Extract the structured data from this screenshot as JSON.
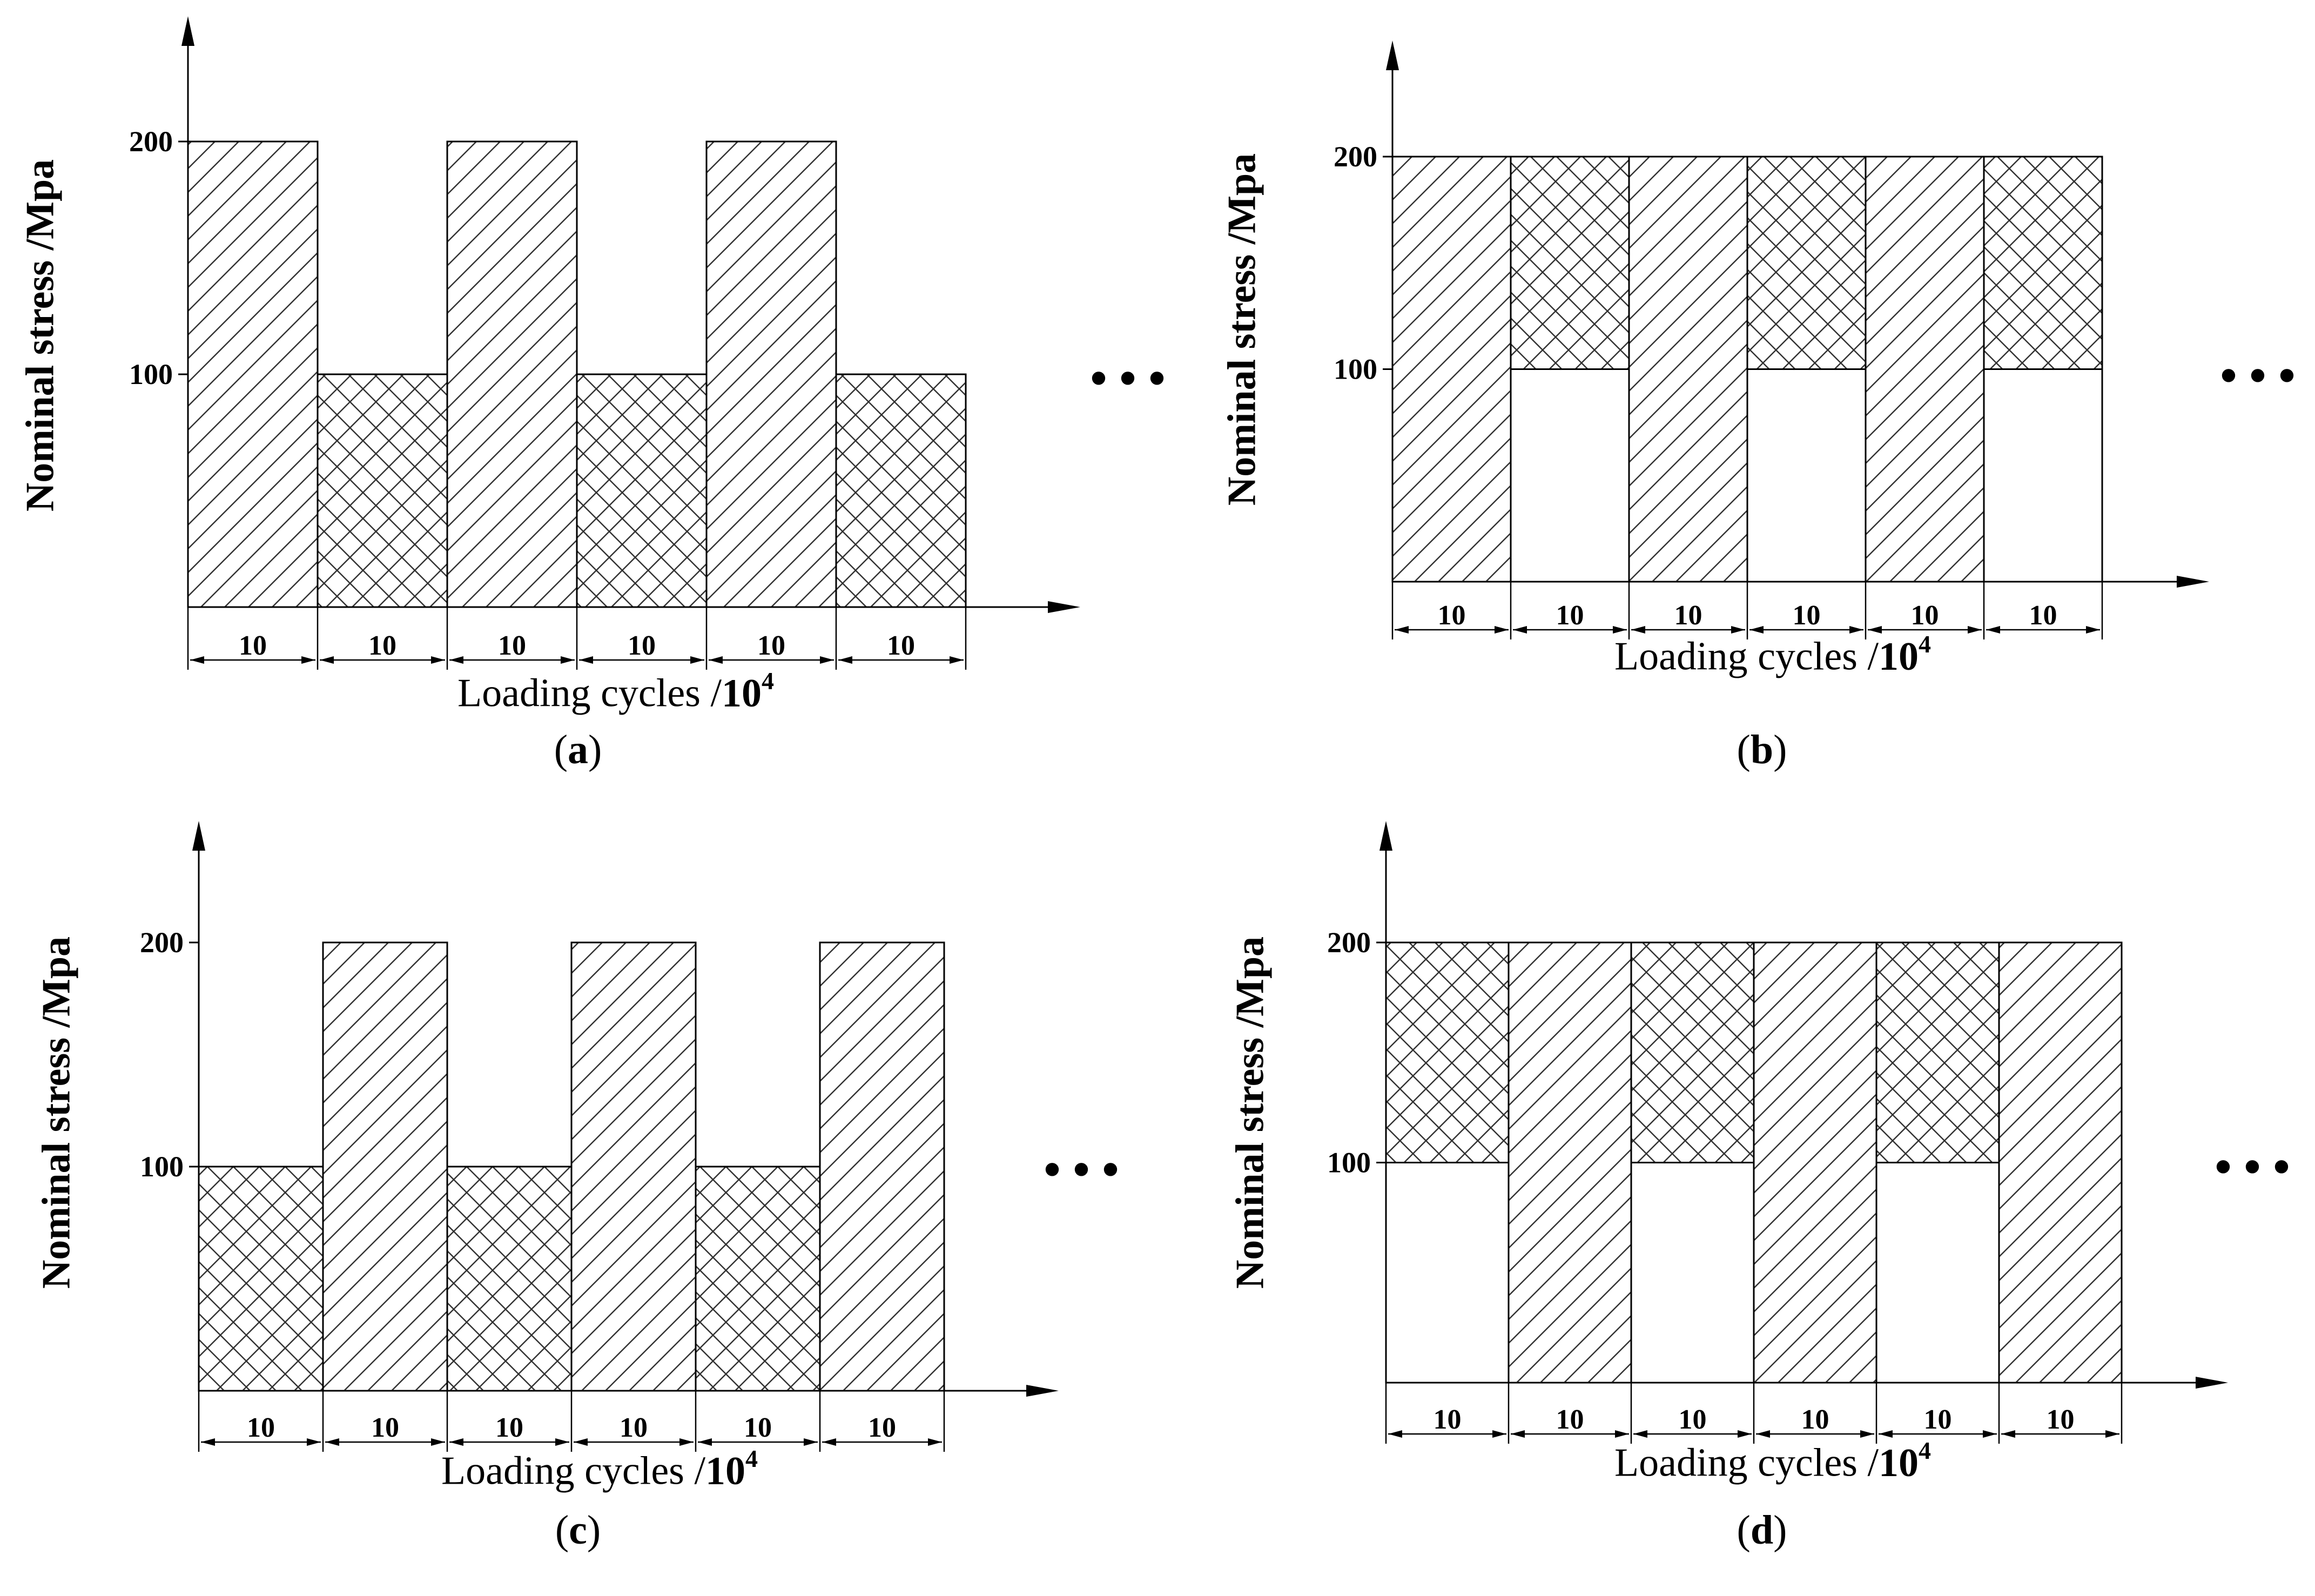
{
  "chart_data": [
    {
      "type": "bar",
      "panel": "a",
      "caption": {
        "open": "(",
        "letter": "a",
        "close": ")"
      },
      "ylabel": "Nominal stress /Mpa",
      "xlabel": {
        "text": "Loading cycles /",
        "unit": "10",
        "exp": "4"
      },
      "yticks": [
        100,
        200
      ],
      "ylim": [
        0,
        270
      ],
      "block_widths": [
        10,
        10,
        10,
        10,
        10,
        10
      ],
      "series": [
        {
          "name": "",
          "values": [
            200,
            100,
            200,
            100,
            200,
            100
          ]
        }
      ],
      "blocks": [
        {
          "value": 200,
          "pattern": "diagonal"
        },
        {
          "value": 100,
          "pattern": "crosshatch"
        },
        {
          "value": 200,
          "pattern": "diagonal"
        },
        {
          "value": 100,
          "pattern": "crosshatch"
        },
        {
          "value": 200,
          "pattern": "diagonal"
        },
        {
          "value": 100,
          "pattern": "crosshatch"
        }
      ],
      "continuation": "• • •"
    },
    {
      "type": "bar",
      "panel": "b",
      "caption": {
        "open": "(",
        "letter": "b",
        "close": ")"
      },
      "ylabel": "Nominal stress /Mpa",
      "xlabel": {
        "text": "Loading cycles /",
        "unit": "10",
        "exp": "4"
      },
      "yticks": [
        100,
        200
      ],
      "ylim": [
        0,
        270
      ],
      "block_widths": [
        10,
        10,
        10,
        10,
        10,
        10
      ],
      "series": [
        {
          "name": "",
          "values": [
            200,
            200,
            200,
            200,
            200,
            200
          ]
        }
      ],
      "blocks": [
        {
          "value": 200,
          "pattern": "diagonal"
        },
        {
          "value": 200,
          "pattern": "crosshatch",
          "from": 100
        },
        {
          "value": 200,
          "pattern": "diagonal"
        },
        {
          "value": 200,
          "pattern": "crosshatch",
          "from": 100
        },
        {
          "value": 200,
          "pattern": "diagonal"
        },
        {
          "value": 200,
          "pattern": "crosshatch",
          "from": 100
        }
      ],
      "continuation": "• • •"
    },
    {
      "type": "bar",
      "panel": "c",
      "caption": {
        "open": "(",
        "letter": "c",
        "close": ")"
      },
      "ylabel": "Nominal stress /Mpa",
      "xlabel": {
        "text": "Loading cycles /",
        "unit": "10",
        "exp": "4"
      },
      "yticks": [
        100,
        200
      ],
      "ylim": [
        0,
        270
      ],
      "block_widths": [
        10,
        10,
        10,
        10,
        10,
        10
      ],
      "series": [
        {
          "name": "",
          "values": [
            100,
            200,
            100,
            200,
            100,
            200
          ]
        }
      ],
      "blocks": [
        {
          "value": 100,
          "pattern": "crosshatch"
        },
        {
          "value": 200,
          "pattern": "diagonal"
        },
        {
          "value": 100,
          "pattern": "crosshatch"
        },
        {
          "value": 200,
          "pattern": "diagonal"
        },
        {
          "value": 100,
          "pattern": "crosshatch"
        },
        {
          "value": 200,
          "pattern": "diagonal"
        }
      ],
      "continuation": "• • •"
    },
    {
      "type": "bar",
      "panel": "d",
      "caption": {
        "open": "(",
        "letter": "d",
        "close": ")"
      },
      "ylabel": "Nominal stress /Mpa",
      "xlabel": {
        "text": "Loading cycles /",
        "unit": "10",
        "exp": "4"
      },
      "yticks": [
        100,
        200
      ],
      "ylim": [
        0,
        270
      ],
      "block_widths": [
        10,
        10,
        10,
        10,
        10,
        10
      ],
      "series": [
        {
          "name": "",
          "values": [
            200,
            200,
            200,
            200,
            200,
            200
          ]
        }
      ],
      "blocks": [
        {
          "value": 200,
          "pattern": "crosshatch",
          "from": 100
        },
        {
          "value": 200,
          "pattern": "diagonal"
        },
        {
          "value": 200,
          "pattern": "crosshatch",
          "from": 100
        },
        {
          "value": 200,
          "pattern": "diagonal"
        },
        {
          "value": 200,
          "pattern": "crosshatch",
          "from": 100
        },
        {
          "value": 200,
          "pattern": "diagonal"
        }
      ],
      "continuation": "• • •"
    }
  ]
}
